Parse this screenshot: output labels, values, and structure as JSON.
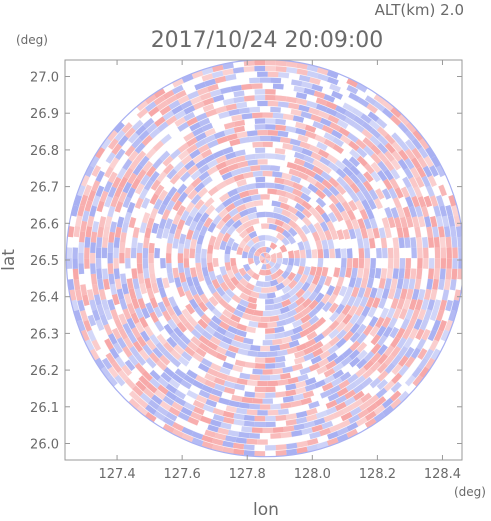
{
  "chart_data": {
    "type": "heatmap",
    "title": "2017/10/24 20:09:00",
    "altitude_label": "ALT(km) 2.0",
    "xlabel": "lon",
    "ylabel": "lat",
    "x_unit": "(deg)",
    "y_unit": "(deg)",
    "xlim": [
      127.24,
      128.46
    ],
    "ylim": [
      25.955,
      27.045
    ],
    "x_ticks": [
      "127.4",
      "127.6",
      "127.8",
      "128.0",
      "128.2",
      "128.4"
    ],
    "y_ticks": [
      "26.0",
      "26.1",
      "26.2",
      "26.3",
      "26.4",
      "26.5",
      "26.6",
      "26.7",
      "26.8",
      "26.9",
      "27.0"
    ],
    "radar_center": {
      "lon": 127.855,
      "lat": 26.505
    },
    "radar_range_deg": {
      "lon": 0.611,
      "lat": 0.541
    },
    "colors": {
      "positive": "#f7a8a8",
      "negative": "#a8b0f2",
      "neutral": "#ffffff",
      "frame": "#999999",
      "text": "#6a6a6a"
    }
  }
}
